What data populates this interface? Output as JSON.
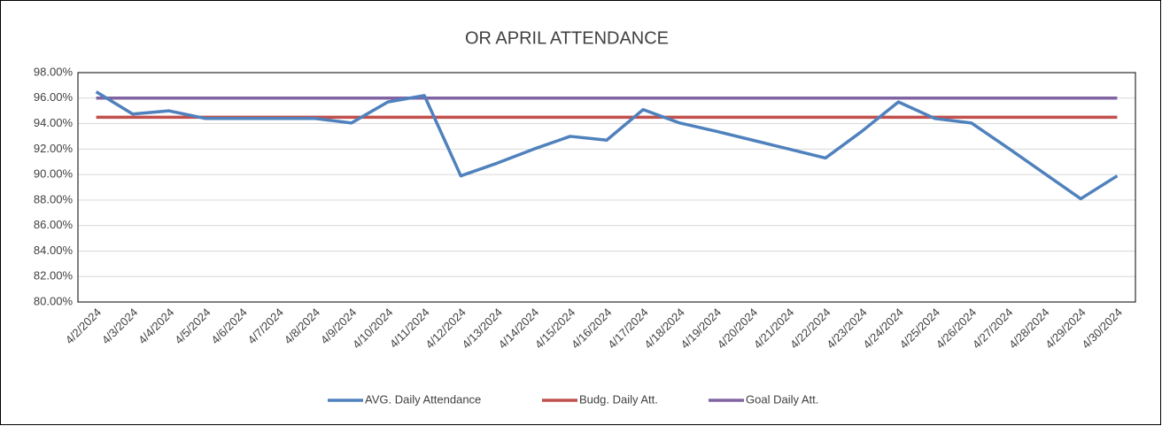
{
  "chart_data": {
    "type": "line",
    "title": "OR APRIL ATTENDANCE",
    "categories": [
      "4/2/2024",
      "4/3/2024",
      "4/4/2024",
      "4/5/2024",
      "4/6/2024",
      "4/7/2024",
      "4/8/2024",
      "4/9/2024",
      "4/10/2024",
      "4/11/2024",
      "4/12/2024",
      "4/13/2024",
      "4/14/2024",
      "4/15/2024",
      "4/16/2024",
      "4/17/2024",
      "4/18/2024",
      "4/19/2024",
      "4/20/2024",
      "4/21/2024",
      "4/22/2024",
      "4/23/2024",
      "4/24/2024",
      "4/25/2024",
      "4/26/2024",
      "4/27/2024",
      "4/28/2024",
      "4/29/2024",
      "4/30/2024"
    ],
    "series": [
      {
        "name": "AVG. Daily Attendance",
        "color": "#4f81bd",
        "values": [
          96.5,
          94.75,
          95.0,
          94.4,
          94.4,
          94.4,
          94.4,
          94.05,
          95.7,
          96.2,
          89.9,
          90.9,
          92.0,
          93.0,
          92.7,
          95.1,
          94.05,
          93.4,
          92.7,
          92.0,
          91.3,
          93.4,
          95.7,
          94.4,
          94.05,
          92.1,
          90.1,
          88.1,
          89.9
        ]
      },
      {
        "name": "Budg. Daily Att.",
        "color": "#c0504d",
        "values": [
          94.5,
          94.5,
          94.5,
          94.5,
          94.5,
          94.5,
          94.5,
          94.5,
          94.5,
          94.5,
          94.5,
          94.5,
          94.5,
          94.5,
          94.5,
          94.5,
          94.5,
          94.5,
          94.5,
          94.5,
          94.5,
          94.5,
          94.5,
          94.5,
          94.5,
          94.5,
          94.5,
          94.5,
          94.5
        ]
      },
      {
        "name": "Goal Daily Att.",
        "color": "#8064a2",
        "values": [
          96,
          96,
          96,
          96,
          96,
          96,
          96,
          96,
          96,
          96,
          96,
          96,
          96,
          96,
          96,
          96,
          96,
          96,
          96,
          96,
          96,
          96,
          96,
          96,
          96,
          96,
          96,
          96,
          96
        ]
      }
    ],
    "ylim": [
      80,
      98
    ],
    "yticks": [
      {
        "value": 80,
        "label": "80.00%"
      },
      {
        "value": 82,
        "label": "82.00%"
      },
      {
        "value": 84,
        "label": "84.00%"
      },
      {
        "value": 86,
        "label": "86.00%"
      },
      {
        "value": 88,
        "label": "88.00%"
      },
      {
        "value": 90,
        "label": "90.00%"
      },
      {
        "value": 92,
        "label": "92.00%"
      },
      {
        "value": 94,
        "label": "94.00%"
      },
      {
        "value": 96,
        "label": "96.00%"
      },
      {
        "value": 98,
        "label": "98.00%"
      }
    ],
    "grid": true,
    "legend": "bottom"
  }
}
